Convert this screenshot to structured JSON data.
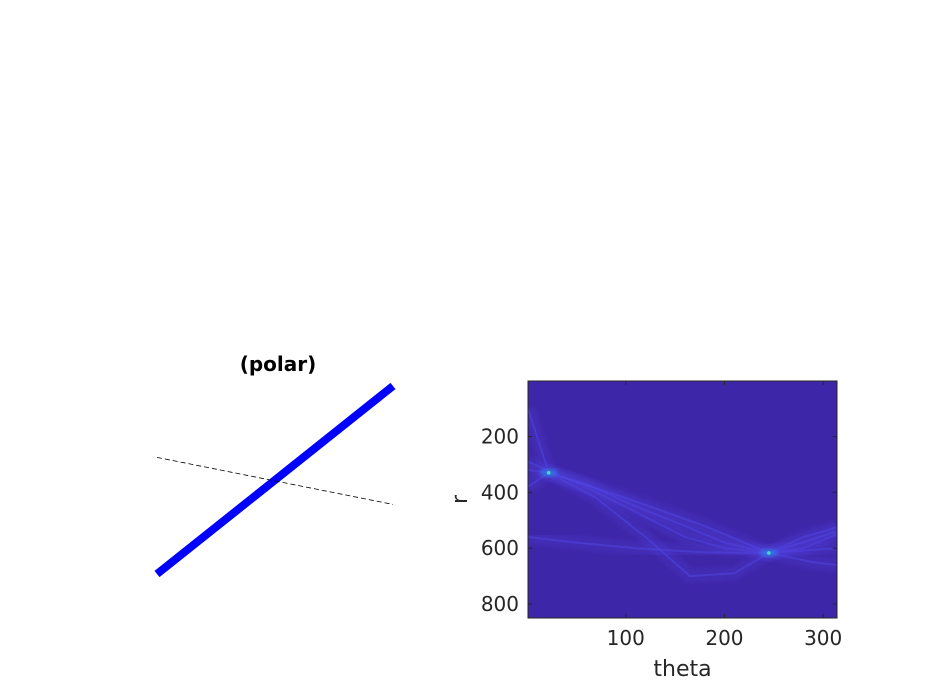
{
  "figure": {
    "left_title": "(polar)"
  },
  "chart_data": [
    {
      "type": "line",
      "title": "(polar)",
      "axes_visible": false,
      "series": [
        {
          "color": "#0000ff",
          "style": "solid-thick",
          "x": [
            0,
            1
          ],
          "y": [
            0,
            1
          ]
        },
        {
          "color": "#000000",
          "style": "dashed",
          "x": [
            0,
            1
          ],
          "y": [
            0.62,
            0.37
          ]
        }
      ]
    },
    {
      "type": "heatmap",
      "title": "",
      "xlabel": "theta",
      "ylabel": "r",
      "xlim": [
        1,
        314
      ],
      "ylim": [
        850,
        1
      ],
      "y_reversed": true,
      "xticks": [
        100,
        200,
        300
      ],
      "yticks": [
        200,
        400,
        600,
        800
      ],
      "colormap": "parula",
      "background_color": "#3e26a8",
      "peaks": [
        {
          "theta": 22,
          "r": 330
        },
        {
          "theta": 245,
          "r": 617
        }
      ],
      "curves": [
        {
          "theta": [
            1,
            60,
            110,
            160,
            200,
            245,
            280,
            314
          ],
          "r": [
            290,
            380,
            470,
            560,
            600,
            617,
            560,
            525
          ]
        },
        {
          "theta": [
            1,
            22,
            70,
            120,
            165,
            210,
            245,
            280,
            314
          ],
          "r": [
            320,
            330,
            420,
            560,
            700,
            690,
            617,
            600,
            550
          ]
        },
        {
          "theta": [
            1,
            22,
            60,
            110,
            160,
            200,
            245,
            290,
            314
          ],
          "r": [
            380,
            330,
            370,
            450,
            520,
            580,
            617,
            650,
            660
          ]
        },
        {
          "theta": [
            1,
            50,
            110,
            180,
            245,
            314
          ],
          "r": [
            560,
            580,
            600,
            615,
            617,
            600
          ]
        },
        {
          "theta": [
            1,
            22,
            100,
            180,
            245,
            314
          ],
          "r": [
            100,
            330,
            420,
            520,
            617,
            540
          ]
        }
      ]
    }
  ]
}
